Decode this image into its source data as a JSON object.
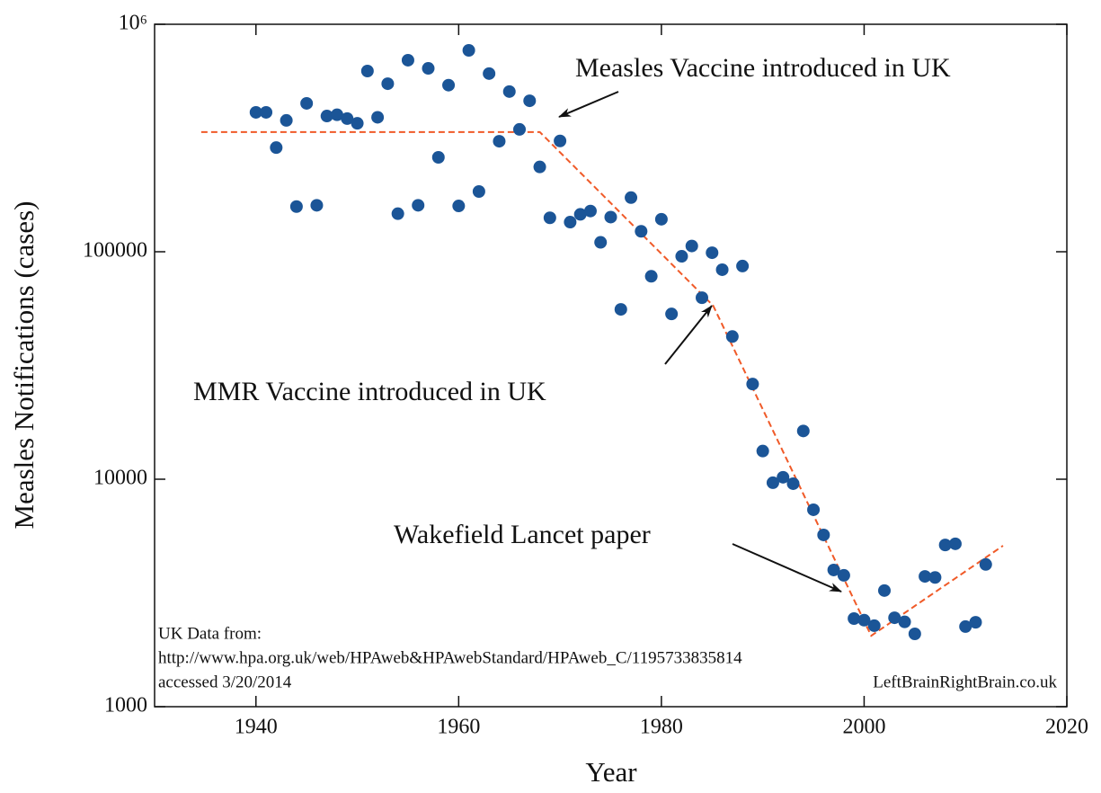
{
  "chart_data": {
    "type": "scatter",
    "xlabel": "Year",
    "ylabel": "Measles Notifications (cases)",
    "x": [
      1940,
      1941,
      1942,
      1943,
      1944,
      1945,
      1946,
      1947,
      1948,
      1949,
      1950,
      1951,
      1952,
      1953,
      1954,
      1955,
      1956,
      1957,
      1958,
      1959,
      1960,
      1961,
      1962,
      1963,
      1964,
      1965,
      1966,
      1967,
      1968,
      1969,
      1970,
      1971,
      1972,
      1973,
      1974,
      1975,
      1976,
      1977,
      1978,
      1979,
      1980,
      1981,
      1982,
      1983,
      1984,
      1985,
      1986,
      1987,
      1988,
      1989,
      1990,
      1991,
      1992,
      1993,
      1994,
      1995,
      1996,
      1997,
      1998,
      1999,
      2000,
      2001,
      2002,
      2003,
      2004,
      2005,
      2006,
      2007,
      2008,
      2009,
      2010,
      2011,
      2012
    ],
    "values": [
      410000,
      410000,
      287000,
      378000,
      158000,
      449000,
      160000,
      395000,
      400000,
      385000,
      367000,
      623000,
      390000,
      548000,
      147000,
      695000,
      160000,
      640000,
      260000,
      540000,
      159000,
      768000,
      184000,
      607000,
      306000,
      506000,
      345000,
      461000,
      236000,
      141000,
      307000,
      135000,
      146000,
      151000,
      110000,
      142000,
      55800,
      173000,
      123000,
      78000,
      139000,
      53300,
      95500,
      106000,
      62800,
      99000,
      83400,
      42400,
      86500,
      26200,
      13300,
      9650,
      10200,
      9560,
      16300,
      7340,
      5690,
      3990,
      3780,
      2440,
      2400,
      2270,
      3240,
      2460,
      2360,
      2090,
      3740,
      3700,
      5140,
      5200,
      2250,
      2350,
      4220
    ],
    "color": "#1b5597",
    "trend_line": {
      "x": [
        1934.6,
        1968,
        1985.1,
        2000.7,
        2013.7
      ],
      "values": [
        336000,
        336000,
        58000,
        2050,
        5100
      ],
      "color": "#f05a28"
    },
    "xlim": [
      1930,
      2020
    ],
    "xticks": [
      1940,
      1960,
      1980,
      2000,
      2020
    ],
    "ylim": [
      1000,
      1000000
    ],
    "yscale": "log",
    "yticks": [
      1000,
      10000,
      100000,
      {
        "value": 1000000,
        "label": "10⁶"
      }
    ],
    "annotations": [
      "Measles Vaccine introduced in UK",
      "MMR Vaccine introduced in UK",
      "Wakefield Lancet paper"
    ],
    "source": [
      "UK Data from:",
      "http://www.hpa.org.uk/web/HPAweb&HPAwebStandard/HPAweb_C/1195733835814",
      "accessed 3/20/2014"
    ],
    "credit": "LeftBrainRightBrain.co.uk"
  }
}
